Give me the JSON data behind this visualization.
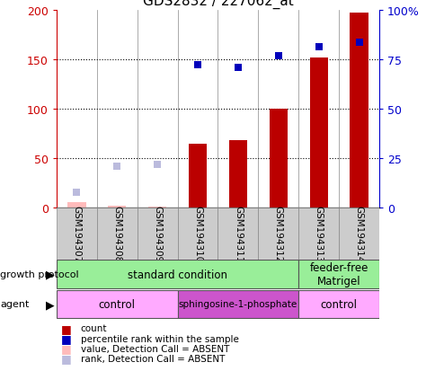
{
  "title": "GDS2832 / 227062_at",
  "samples": [
    "GSM194307",
    "GSM194308",
    "GSM194309",
    "GSM194310",
    "GSM194311",
    "GSM194312",
    "GSM194313",
    "GSM194314"
  ],
  "count_values": [
    5,
    2,
    1,
    65,
    68,
    100,
    152,
    198
  ],
  "count_absent": [
    true,
    true,
    true,
    false,
    false,
    false,
    false,
    false
  ],
  "rank_values": [
    15,
    42,
    44,
    145,
    142,
    154,
    163,
    168
  ],
  "rank_absent": [
    true,
    true,
    true,
    false,
    false,
    false,
    false,
    false
  ],
  "left_ylim": [
    0,
    200
  ],
  "right_ylim": [
    0,
    100
  ],
  "left_yticks": [
    0,
    50,
    100,
    150,
    200
  ],
  "right_yticks": [
    0,
    25,
    50,
    75,
    100
  ],
  "right_yticklabels": [
    "0",
    "25",
    "50",
    "75",
    "100%"
  ],
  "color_count_present": "#bb0000",
  "color_count_absent": "#ffbbbb",
  "color_rank_present": "#0000bb",
  "color_rank_absent": "#bbbbdd",
  "growth_protocol_groups": [
    {
      "label": "standard condition",
      "start": 0,
      "end": 6,
      "color": "#99ee99"
    },
    {
      "label": "feeder-free\nMatrigel",
      "start": 6,
      "end": 8,
      "color": "#99ee99"
    }
  ],
  "agent_groups": [
    {
      "label": "control",
      "start": 0,
      "end": 3,
      "color": "#ffaaff"
    },
    {
      "label": "sphingosine-1-phosphate",
      "start": 3,
      "end": 6,
      "color": "#cc55cc"
    },
    {
      "label": "control",
      "start": 6,
      "end": 8,
      "color": "#ffaaff"
    }
  ],
  "legend_items": [
    {
      "label": "count",
      "color": "#bb0000"
    },
    {
      "label": "percentile rank within the sample",
      "color": "#0000bb"
    },
    {
      "label": "value, Detection Call = ABSENT",
      "color": "#ffbbbb"
    },
    {
      "label": "rank, Detection Call = ABSENT",
      "color": "#bbbbdd"
    }
  ],
  "ylabel_left_color": "#cc0000",
  "ylabel_right_color": "#0000cc",
  "background_color": "#ffffff",
  "plot_bg_color": "#ffffff",
  "grid_color": "#000000",
  "sample_label_bg": "#cccccc",
  "sample_label_border": "#888888"
}
